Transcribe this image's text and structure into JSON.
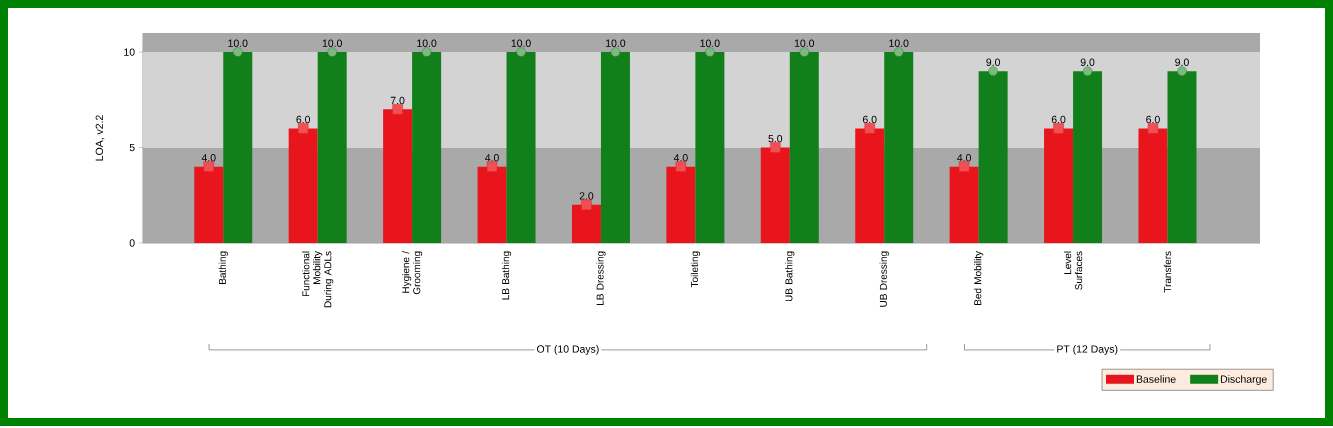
{
  "chart_data": {
    "type": "bar",
    "ylabel": "LOA, v2.2",
    "categories": [
      "Bathing",
      "Functional Mobility During ADLs",
      "Hygiene / Grooming",
      "LB Bathing",
      "LB Dressing",
      "Toileting",
      "UB Bathing",
      "UB Dressing",
      "Bed Mobility",
      "Level Surfaces",
      "Transfers"
    ],
    "series": [
      {
        "name": "Baseline",
        "color": "#e8161c",
        "marker": "square",
        "values": [
          4,
          6,
          7,
          4,
          2,
          4,
          5,
          6,
          4,
          6,
          6
        ],
        "value_labels": [
          "4.0",
          "6.0",
          "7.0",
          "4.0",
          "2.0",
          "4.0",
          "5.0",
          "6.0",
          "4.0",
          "6.0",
          "6.0"
        ]
      },
      {
        "name": "Discharge",
        "color": "#12801a",
        "marker": "circle",
        "values": [
          10,
          10,
          10,
          10,
          10,
          10,
          10,
          10,
          9,
          9,
          9
        ],
        "value_labels": [
          "10.0",
          "10.0",
          "10.0",
          "10.0",
          "10.0",
          "10.0",
          "10.0",
          "10.0",
          "9.0",
          "9.0",
          "9.0"
        ]
      }
    ],
    "ylim": [
      0,
      11
    ],
    "yticks": [
      0,
      5,
      10
    ],
    "bands": [
      {
        "axis": "y",
        "from": 0,
        "to": 5,
        "color": "#a9a9a9"
      },
      {
        "axis": "y",
        "from": 5,
        "to": 10,
        "color": "#d3d3d3"
      },
      {
        "axis": "y",
        "from": 10,
        "to": 11,
        "color": "#a9a9a9"
      }
    ],
    "annotations": [
      "OT (10 Days)",
      "PT (12 Days)"
    ],
    "legend": "bottom right"
  }
}
